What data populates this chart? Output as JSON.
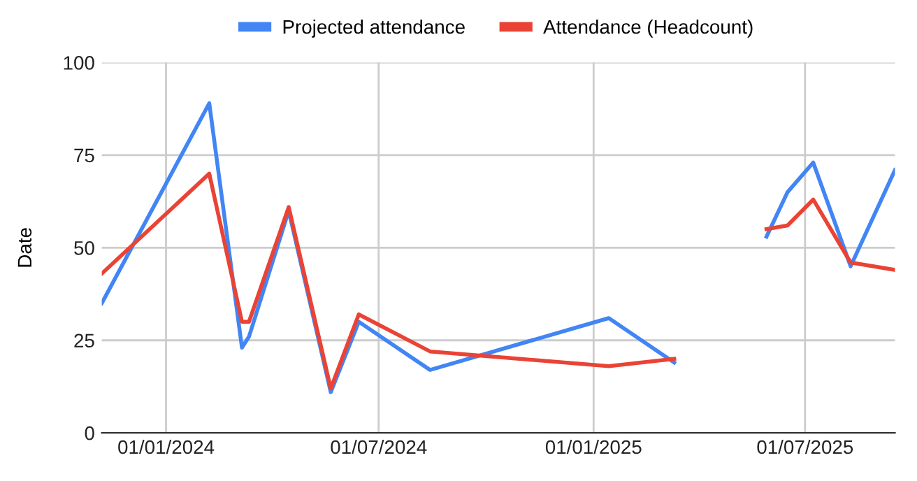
{
  "chart_data": {
    "type": "line",
    "ylabel": "Date",
    "x": [
      "2023-11-07",
      "2024-02-07",
      "2024-03-06",
      "2024-03-12",
      "2024-04-15",
      "2024-05-21",
      "2024-06-14",
      "2024-08-14",
      "2025-01-14",
      "2025-03-11",
      "2025-04-20",
      "2025-05-29",
      "2025-06-16",
      "2025-07-08",
      "2025-08-09",
      "2025-09-16"
    ],
    "series": [
      {
        "name": "Projected attendance",
        "color": "#4285f4",
        "values": [
          35,
          89,
          23,
          26,
          60,
          11,
          30,
          17,
          31,
          19,
          null,
          53,
          65,
          73,
          45,
          71
        ]
      },
      {
        "name": "Attendance (Headcount)",
        "color": "#ea4335",
        "values": [
          43,
          70,
          30,
          30,
          61,
          12,
          32,
          22,
          18,
          20,
          null,
          55,
          56,
          63,
          46,
          44
        ]
      }
    ],
    "xlim": [
      "2023-11-07",
      "2025-09-16"
    ],
    "xticks": [
      {
        "value": "2024-01-01",
        "label": "01/01/2024"
      },
      {
        "value": "2024-07-01",
        "label": "01/07/2024"
      },
      {
        "value": "2025-01-01",
        "label": "01/01/2025"
      },
      {
        "value": "2025-07-01",
        "label": "01/07/2025"
      }
    ],
    "ylim": [
      0,
      100
    ],
    "yticks": [
      0,
      25,
      50,
      75,
      100
    ],
    "grid": true,
    "legend": "top",
    "marker": "none",
    "line_style": "solid"
  }
}
